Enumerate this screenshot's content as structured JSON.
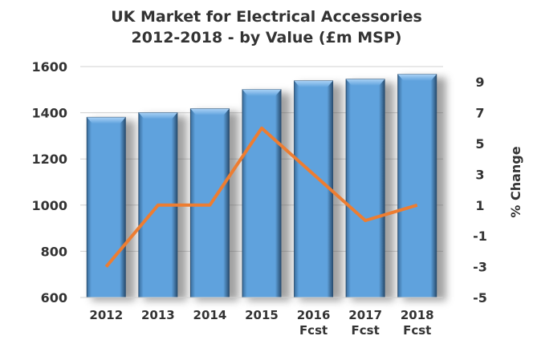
{
  "chart_data": {
    "type": "bar+line",
    "title": [
      "UK Market for Electrical Accessories",
      "2012-2018 - by Value (£m MSP)"
    ],
    "categories": [
      [
        "2012"
      ],
      [
        "2013"
      ],
      [
        "2014"
      ],
      [
        "2015"
      ],
      [
        "2016",
        "Fcst"
      ],
      [
        "2017",
        "Fcst"
      ],
      [
        "2018",
        "Fcst"
      ]
    ],
    "series": [
      {
        "type": "bar",
        "axis": "left",
        "values": [
          1380,
          1400,
          1417,
          1500,
          1538,
          1545,
          1566
        ],
        "color": "#5fa2dd"
      },
      {
        "type": "line",
        "axis": "right",
        "values": [
          -3,
          1,
          1,
          6,
          3,
          0,
          1
        ],
        "color": "#ed7d31"
      }
    ],
    "y_left": {
      "label": "",
      "ylim": [
        600,
        1600
      ],
      "ticks": [
        600,
        800,
        1000,
        1200,
        1400,
        1600
      ]
    },
    "y_right": {
      "label": "% Change",
      "ylim": [
        -5,
        10
      ],
      "ticks": [
        -5,
        -3,
        -1,
        1,
        3,
        5,
        7,
        9
      ]
    },
    "grid": true,
    "legend": "none"
  }
}
